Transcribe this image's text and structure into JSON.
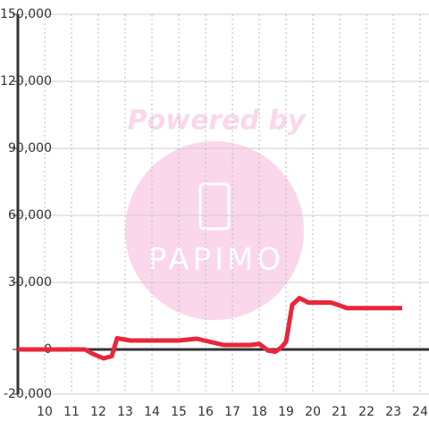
{
  "chart_data": {
    "type": "line",
    "watermark": {
      "text": "Powered by",
      "logo": "PAPIMO"
    },
    "x": [
      9,
      11.5,
      11.8,
      12.2,
      12.5,
      12.7,
      13.2,
      14,
      15,
      15.67,
      16.67,
      17,
      17.67,
      18,
      18.33,
      18.6,
      18.83,
      19,
      19.23,
      19.5,
      19.83,
      20.67,
      20.93,
      21.27,
      23.33
    ],
    "series": [
      {
        "color": "#e8273a",
        "values": [
          0,
          0,
          -2000,
          -4000,
          -3000,
          5000,
          4000,
          4000,
          4000,
          4800,
          2000,
          2000,
          2000,
          2500,
          -500,
          -1000,
          1000,
          3500,
          20000,
          23000,
          21000,
          21000,
          20000,
          18500,
          18500
        ]
      }
    ],
    "xlim": [
      9,
      24.33
    ],
    "ylim": [
      -20000,
      150000
    ],
    "xticks": [
      10,
      11,
      12,
      13,
      14,
      15,
      16,
      17,
      18,
      19,
      20,
      21,
      22,
      23,
      24
    ],
    "yticks": [
      {
        "value": -20000,
        "label": "-20,000"
      },
      0,
      {
        "value": 30000,
        "label": "30,000"
      },
      {
        "value": 60000,
        "label": "60,000"
      },
      {
        "value": 90000,
        "label": "90,000"
      },
      {
        "value": 120000,
        "label": "120,000"
      },
      {
        "value": 150000,
        "label": "150,000"
      }
    ],
    "grid": true
  }
}
